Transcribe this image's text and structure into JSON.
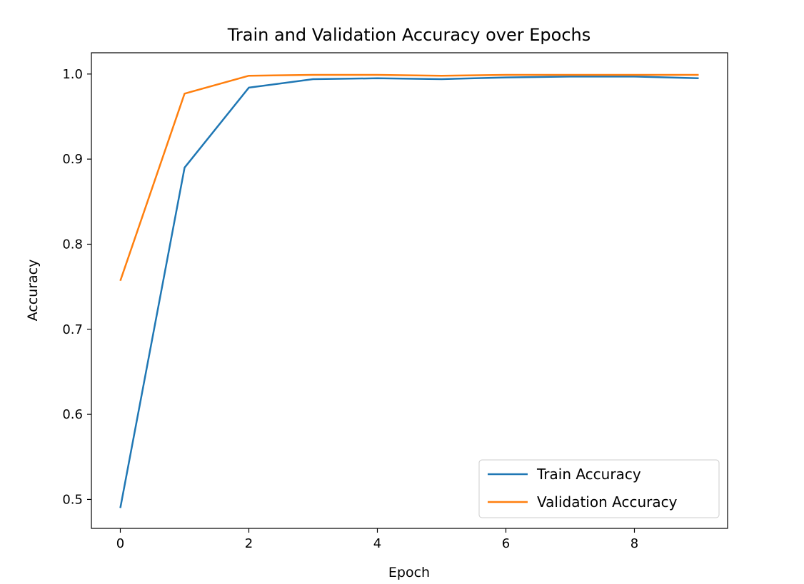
{
  "chart_data": {
    "type": "line",
    "title": "Train and Validation Accuracy over Epochs",
    "xlabel": "Epoch",
    "ylabel": "Accuracy",
    "x": [
      0,
      1,
      2,
      3,
      4,
      5,
      6,
      7,
      8,
      9
    ],
    "xlim": [
      -0.45,
      9.45
    ],
    "ylim": [
      0.466,
      1.025
    ],
    "xticks": [
      0,
      2,
      4,
      6,
      8
    ],
    "yticks": [
      0.5,
      0.6,
      0.7,
      0.8,
      0.9,
      1.0
    ],
    "xtick_labels": [
      "0",
      "2",
      "4",
      "6",
      "8"
    ],
    "ytick_labels": [
      "0.5",
      "0.6",
      "0.7",
      "0.8",
      "0.9",
      "1.0"
    ],
    "grid": false,
    "legend_position": "lower-right",
    "series": [
      {
        "name": "Train Accuracy",
        "color": "#1f77b4",
        "values": [
          0.49,
          0.89,
          0.984,
          0.994,
          0.995,
          0.994,
          0.996,
          0.997,
          0.997,
          0.995
        ]
      },
      {
        "name": "Validation Accuracy",
        "color": "#ff7f0e",
        "values": [
          0.757,
          0.977,
          0.998,
          0.999,
          0.999,
          0.998,
          0.999,
          0.999,
          0.999,
          0.999
        ]
      }
    ]
  }
}
